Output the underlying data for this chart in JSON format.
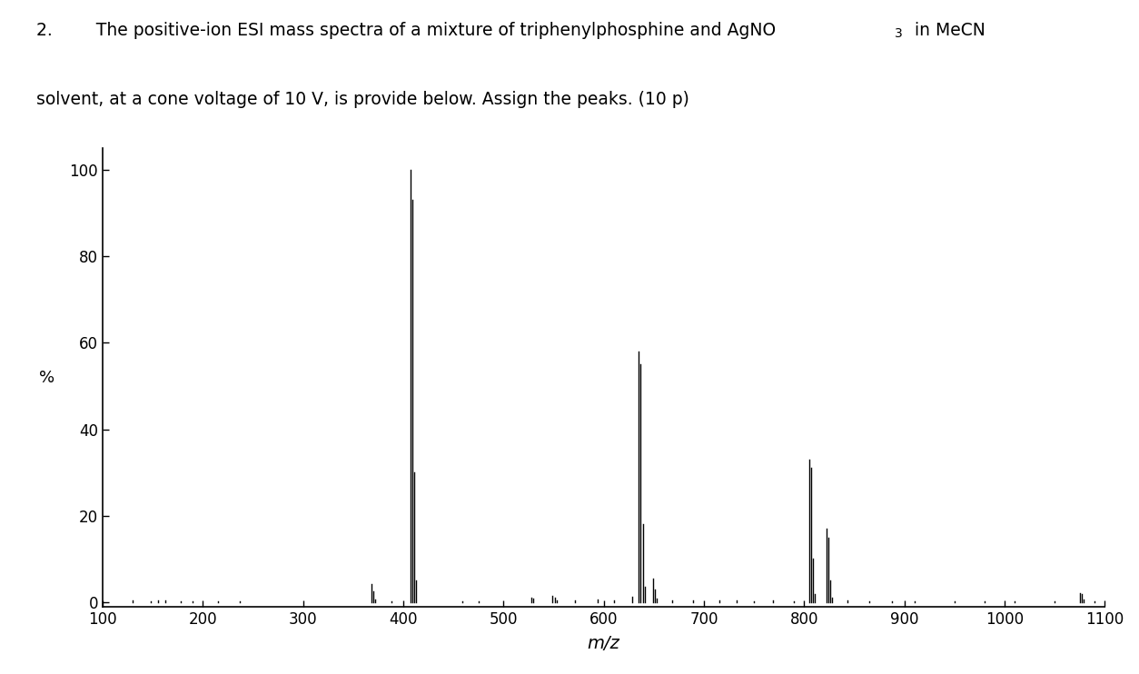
{
  "ylabel": "%",
  "xlabel": "m/z",
  "xlim": [
    100,
    1100
  ],
  "ylim": [
    -1,
    105
  ],
  "xticks": [
    100,
    200,
    300,
    400,
    500,
    600,
    700,
    800,
    900,
    1000,
    1100
  ],
  "yticks": [
    0,
    20,
    40,
    60,
    80,
    100
  ],
  "background_color": "#ffffff",
  "title_prefix": "2.        The positive-ion ESI mass spectra of a mixture of triphenylphosphine and AgNO",
  "title_suffix": " in MeCN",
  "title_line2": "solvent, at a cone voltage of 10 V, is provide below. Assign the peaks. (10 p)",
  "peaks": [
    {
      "mz": 130,
      "intensity": 0.4
    },
    {
      "mz": 148,
      "intensity": 0.3
    },
    {
      "mz": 155,
      "intensity": 0.4
    },
    {
      "mz": 163,
      "intensity": 0.5
    },
    {
      "mz": 178,
      "intensity": 0.3
    },
    {
      "mz": 190,
      "intensity": 0.3
    },
    {
      "mz": 215,
      "intensity": 0.2
    },
    {
      "mz": 237,
      "intensity": 0.2
    },
    {
      "mz": 368,
      "intensity": 4.2
    },
    {
      "mz": 370,
      "intensity": 2.5
    },
    {
      "mz": 372,
      "intensity": 0.6
    },
    {
      "mz": 388,
      "intensity": 0.3
    },
    {
      "mz": 407,
      "intensity": 100.0
    },
    {
      "mz": 409,
      "intensity": 93.0
    },
    {
      "mz": 411,
      "intensity": 30.0
    },
    {
      "mz": 413,
      "intensity": 5.0
    },
    {
      "mz": 459,
      "intensity": 0.3
    },
    {
      "mz": 475,
      "intensity": 0.3
    },
    {
      "mz": 528,
      "intensity": 1.0
    },
    {
      "mz": 530,
      "intensity": 0.8
    },
    {
      "mz": 549,
      "intensity": 1.5
    },
    {
      "mz": 551,
      "intensity": 1.0
    },
    {
      "mz": 553,
      "intensity": 0.4
    },
    {
      "mz": 571,
      "intensity": 0.5
    },
    {
      "mz": 594,
      "intensity": 0.6
    },
    {
      "mz": 610,
      "intensity": 0.5
    },
    {
      "mz": 628,
      "intensity": 1.2
    },
    {
      "mz": 635,
      "intensity": 58.0
    },
    {
      "mz": 637,
      "intensity": 55.0
    },
    {
      "mz": 639,
      "intensity": 18.0
    },
    {
      "mz": 641,
      "intensity": 3.5
    },
    {
      "mz": 649,
      "intensity": 5.5
    },
    {
      "mz": 651,
      "intensity": 3.0
    },
    {
      "mz": 653,
      "intensity": 0.8
    },
    {
      "mz": 668,
      "intensity": 0.5
    },
    {
      "mz": 689,
      "intensity": 0.4
    },
    {
      "mz": 715,
      "intensity": 0.4
    },
    {
      "mz": 733,
      "intensity": 0.5
    },
    {
      "mz": 750,
      "intensity": 0.3
    },
    {
      "mz": 769,
      "intensity": 0.4
    },
    {
      "mz": 790,
      "intensity": 0.3
    },
    {
      "mz": 805,
      "intensity": 33.0
    },
    {
      "mz": 807,
      "intensity": 31.0
    },
    {
      "mz": 809,
      "intensity": 10.0
    },
    {
      "mz": 811,
      "intensity": 2.0
    },
    {
      "mz": 822,
      "intensity": 17.0
    },
    {
      "mz": 824,
      "intensity": 15.0
    },
    {
      "mz": 826,
      "intensity": 5.0
    },
    {
      "mz": 828,
      "intensity": 1.0
    },
    {
      "mz": 843,
      "intensity": 0.4
    },
    {
      "mz": 865,
      "intensity": 0.3
    },
    {
      "mz": 888,
      "intensity": 0.3
    },
    {
      "mz": 910,
      "intensity": 0.2
    },
    {
      "mz": 950,
      "intensity": 0.2
    },
    {
      "mz": 980,
      "intensity": 0.2
    },
    {
      "mz": 1010,
      "intensity": 0.2
    },
    {
      "mz": 1050,
      "intensity": 0.2
    },
    {
      "mz": 1075,
      "intensity": 2.2
    },
    {
      "mz": 1077,
      "intensity": 2.0
    },
    {
      "mz": 1079,
      "intensity": 0.6
    },
    {
      "mz": 1090,
      "intensity": 0.3
    }
  ]
}
